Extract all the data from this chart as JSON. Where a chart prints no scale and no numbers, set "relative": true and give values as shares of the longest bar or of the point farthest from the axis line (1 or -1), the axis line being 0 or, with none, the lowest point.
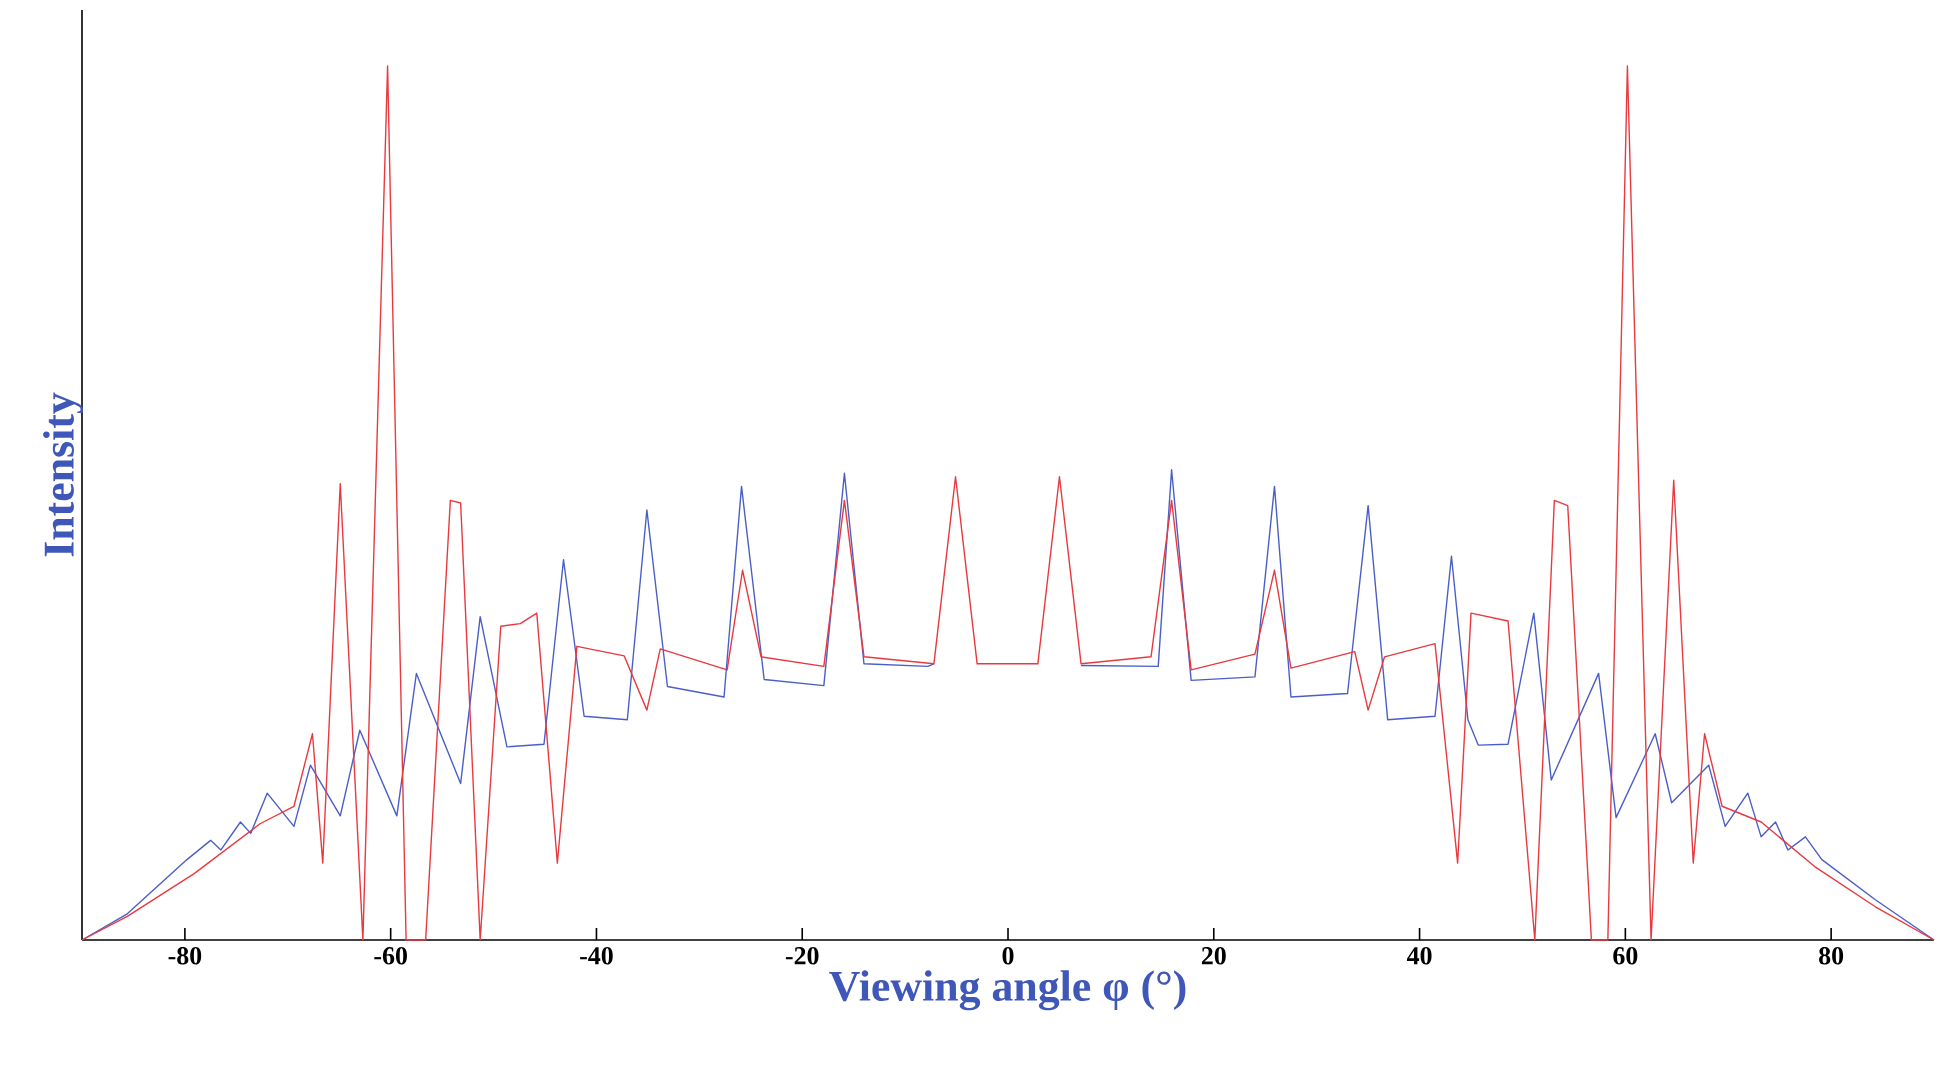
{
  "chart_data": {
    "type": "line",
    "relative": true,
    "xlabel": "Viewing angle φ (°)",
    "ylabel": "Intensity",
    "xlim": [
      -90,
      90
    ],
    "xticks": [
      -80,
      -60,
      -40,
      -20,
      0,
      20,
      40,
      60,
      80
    ],
    "series": [
      {
        "color": "#4a5ec8",
        "x": [
          -90,
          -85.6,
          -79.8,
          -77.5,
          -76.5,
          -74.6,
          -73.6,
          -72.0,
          -69.4,
          -67.8,
          -64.9,
          -63.0,
          -59.4,
          -57.5,
          -53.2,
          -51.3,
          -48.7,
          -45.1,
          -43.2,
          -41.2,
          -37.0,
          -35.1,
          -33.1,
          -27.6,
          -25.9,
          -23.7,
          -17.9,
          -15.9,
          -14.0,
          -7.8,
          -7.2,
          -5.1,
          -3.0,
          0,
          2.9,
          5.0,
          7.1,
          14.6,
          15.9,
          17.8,
          24.0,
          25.9,
          27.5,
          33.0,
          35.0,
          36.9,
          41.5,
          43.1,
          44.7,
          45.7,
          48.6,
          51.1,
          52.8,
          57.4,
          59.1,
          62.9,
          64.5,
          68.1,
          69.7,
          71.9,
          73.2,
          74.6,
          75.8,
          77.5,
          79.1,
          84.3,
          90
        ],
        "values": [
          0,
          0.03,
          0.092,
          0.114,
          0.103,
          0.135,
          0.122,
          0.168,
          0.13,
          0.2,
          0.142,
          0.24,
          0.142,
          0.305,
          0.179,
          0.37,
          0.221,
          0.224,
          0.435,
          0.256,
          0.252,
          0.492,
          0.29,
          0.278,
          0.519,
          0.298,
          0.291,
          0.534,
          0.316,
          0.313,
          0.316,
          null,
          null,
          null,
          null,
          null,
          0.314,
          0.313,
          0.538,
          0.297,
          0.301,
          0.519,
          0.278,
          0.282,
          0.497,
          0.252,
          0.256,
          0.439,
          0.252,
          0.223,
          0.224,
          0.374,
          0.183,
          0.305,
          0.14,
          0.236,
          0.157,
          0.2,
          0.13,
          0.168,
          0.118,
          0.135,
          0.103,
          0.118,
          0.092,
          0.046,
          0
        ]
      },
      {
        "color": "#e8393f",
        "x": [
          -90,
          -85.6,
          -79.1,
          -72.7,
          -69.4,
          -67.6,
          -66.6,
          -64.9,
          -62.7,
          -60.3,
          -58.5,
          -56.6,
          -54.2,
          -53.2,
          -51.3,
          -49.3,
          -47.4,
          -45.8,
          -43.8,
          -41.9,
          -37.3,
          -35.1,
          -33.8,
          -27.3,
          -25.8,
          -24.0,
          -17.9,
          -15.9,
          -14.0,
          -7.2,
          -5.1,
          -3.0,
          0,
          2.9,
          5.0,
          7.1,
          13.9,
          15.9,
          17.8,
          24.0,
          25.9,
          27.5,
          33.7,
          35.0,
          36.6,
          41.5,
          43.7,
          45.0,
          48.6,
          51.2,
          53.1,
          54.4,
          56.7,
          58.3,
          60.2,
          62.5,
          64.7,
          66.6,
          67.7,
          69.4,
          73.2,
          78.4,
          84.3,
          90
        ],
        "values": [
          0,
          0.027,
          0.076,
          0.133,
          0.153,
          0.236,
          0.088,
          0.522,
          0,
          1,
          0,
          0,
          0.503,
          0.5,
          0,
          0.359,
          0.362,
          0.374,
          0.088,
          0.336,
          0.325,
          0.263,
          0.333,
          0.309,
          0.423,
          0.324,
          0.313,
          0.503,
          0.324,
          0.316,
          0.53,
          0.316,
          0.316,
          0.316,
          0.53,
          0.316,
          0.324,
          0.503,
          0.309,
          0.327,
          0.423,
          0.311,
          0.33,
          0.263,
          0.324,
          0.339,
          0.088,
          0.374,
          0.365,
          0,
          0.503,
          0.497,
          0,
          0,
          1,
          0,
          0.526,
          0.088,
          0.236,
          0.153,
          0.135,
          0.084,
          0.038,
          0
        ]
      }
    ]
  }
}
